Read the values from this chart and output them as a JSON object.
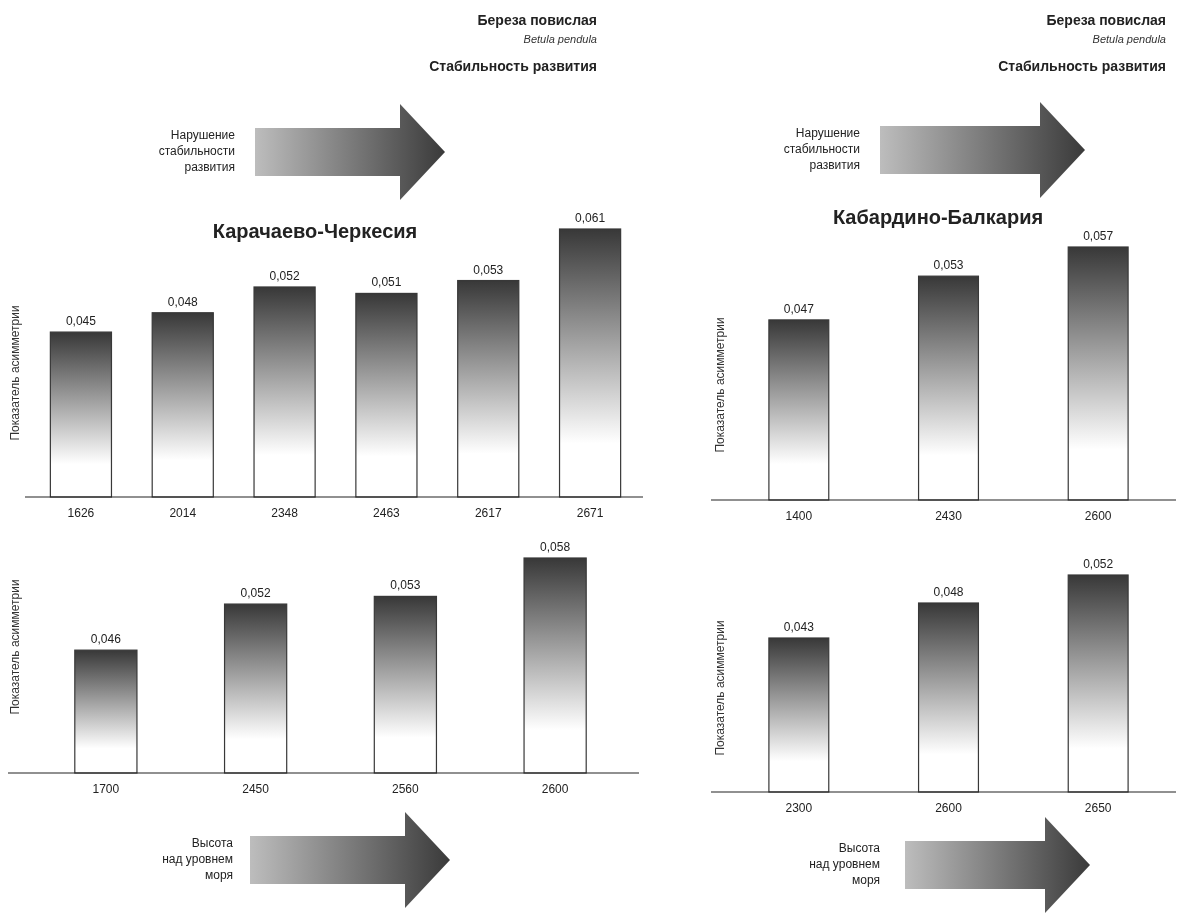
{
  "chart_data": [
    {
      "type": "bar",
      "title": "Карачаево-Черкесия",
      "ylabel": "Показатель асимметрии",
      "categories": [
        "1626",
        "2014",
        "2348",
        "2463",
        "2617",
        "2671"
      ],
      "values": [
        0.045,
        0.048,
        0.052,
        0.051,
        0.053,
        0.061
      ],
      "value_labels": [
        "0,045",
        "0,048",
        "0,052",
        "0,051",
        "0,053",
        "0,061"
      ],
      "color": "#383838",
      "ylim": [
        0.0194,
        0.061
      ],
      "tick_labels": "x",
      "annotations": [
        "Береза повислая",
        "Betula pendula",
        "Стабильность развития",
        "Нарушение\nстабильности\nразвития"
      ]
    },
    {
      "type": "bar",
      "title": "Кабардино-Балкария",
      "ylabel": "Показатель асимметрии",
      "categories": [
        "1400",
        "2430",
        "2600"
      ],
      "values": [
        0.047,
        0.053,
        0.057
      ],
      "value_labels": [
        "0,047",
        "0,053",
        "0,057"
      ],
      "color": "#383838",
      "ylim": [
        0.0223,
        0.057
      ],
      "tick_labels": "x",
      "annotations": [
        "Береза повислая",
        "Betula pendula",
        "Стабильность развития",
        "Нарушение\nстабильности\nразвития"
      ]
    },
    {
      "type": "bar",
      "ylabel": "Показатель асимметрии",
      "categories": [
        "1700",
        "2450",
        "2560",
        "2600"
      ],
      "values": [
        0.046,
        0.052,
        0.053,
        0.058
      ],
      "value_labels": [
        "0,046",
        "0,052",
        "0,053",
        "0,058"
      ],
      "color": "#383838",
      "ylim": [
        0.03,
        0.058
      ],
      "tick_labels": "x",
      "annotations": [
        "Высота\nнад уровнем\nморя"
      ]
    },
    {
      "type": "bar",
      "ylabel": "Показатель асимметрии",
      "categories": [
        "2300",
        "2600",
        "2650"
      ],
      "values": [
        0.043,
        0.048,
        0.052
      ],
      "value_labels": [
        "0,043",
        "0,048",
        "0,052"
      ],
      "color": "#383838",
      "ylim": [
        0.021,
        0.052
      ],
      "tick_labels": "x",
      "annotations": [
        "Высота\nнад уровнем\nморя"
      ]
    }
  ]
}
